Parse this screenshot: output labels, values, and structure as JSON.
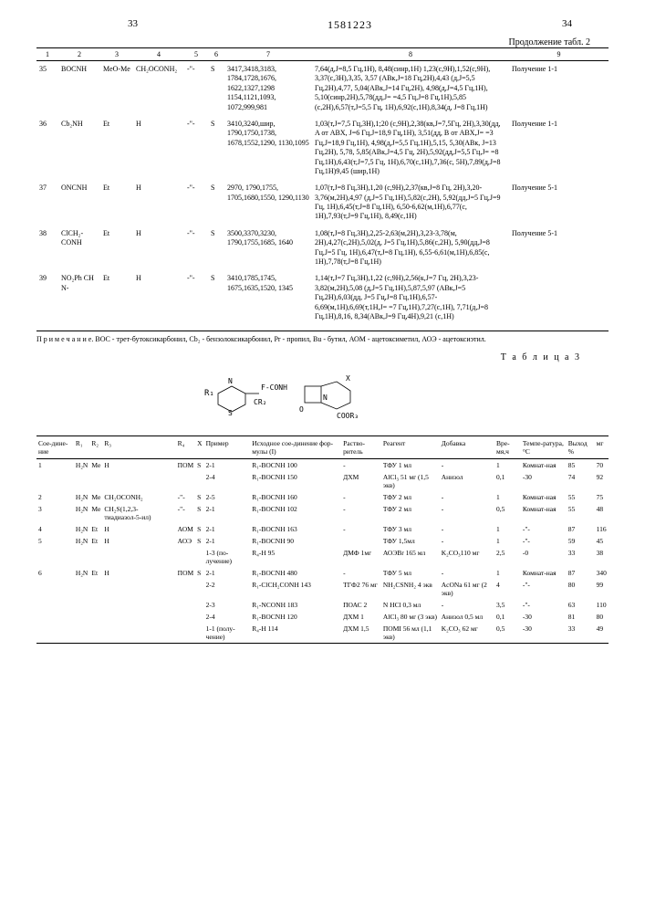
{
  "header": {
    "page_left": "33",
    "doc_number": "1581223",
    "page_right": "34",
    "continuation": "Продолжение табл. 2"
  },
  "table2": {
    "cols": [
      "1",
      "2",
      "3",
      "4",
      "5",
      "6",
      "7",
      "8",
      "9"
    ],
    "rows": [
      {
        "n": "35",
        "c2": "BOCNH",
        "c3": "MeO-Me",
        "c4": "CH₂OCONH₂",
        "c5": "-\"-",
        "c6": "S",
        "c7": "3417,3418,3183, 1784,1728,1676, 1622,1327,1298 1154,1121,1093, 1072,999,981",
        "c8": "7,64(д,J=8,5 Гц,1H), 8,48(синр,1H) 1,23(с,9H),1,52(с,9H), 3,37(с,3H),3,35, 3,57 (ABк,J=18 Гц,2H),4,43 (д,J=5,5 Гц,2H),4,77, 5,04(ABк,J=14 Гц,2H), 4,98(д,J=4,5 Гц,1H), 5,10(синр,2H),5,78(дд,J= =4,5 Гц,J=8 Гц,1H),5,85 (с,2H),6,57(т,J=5,5 Гц, 1H),6,92(с,1H),8,34(д, J=8 Гц,1H)",
        "c9": "Получение 1-1"
      },
      {
        "n": "36",
        "c2": "Cb₂NH",
        "c3": "Et",
        "c4": "H",
        "c5": "-\"-",
        "c6": "S",
        "c7": "3410,3240,шир, 1790,1750,1738, 1678,1552,1290, 1130,1095",
        "c8": "1,03(т,J=7,5 Гц,3H),1;20 (с,9H),2,38(кв,J=7,5Гц, 2H),3,30(дд, A от ABX, J=6 Гц,J=18,9 Гц,1H), 3,51(дд, B от ABX,J= =3 Гц,J=18,9 Гц,1H), 4,98(д,J=5,5 Гц,1H),5,15, 5,30(ABк, J=13 Гц,2H), 5,78, 5,85(ABк,J=4,5 Гц, 2H),5,92(дд,J=5,5 Гц,J= =8 Гц,1H),6,43(т,J=7,5 Гц, 1H),6,70(с,1H),7,36(с, 5H),7,89(д,J=8 Гц,1H)9,45 (шир,1H)",
        "c9": "Получение 1-1"
      },
      {
        "n": "37",
        "c2": "ONCNH",
        "c3": "Et",
        "c4": "H",
        "c5": "-\"-",
        "c6": "S",
        "c7": "2970, 1790,1755, 1705,1680,1550, 1290,1130",
        "c8": "1,07(т,J=8 Гц,3H),1,20 (с,9H),2,37(кв,J=8 Гц, 2H),3,20-3,76(м,2H),4,97 (д,J=5 Гц,1H),5,82(с,2H), 5,92(дд,J=5 Гц,J=9 Гц, 1H),6,45(т,J=8 Гц,1H), 6,50-6,62(м,1H),6,77(с, 1H),7,93(т,J=9 Гц,1H), 8,49(с,1H)",
        "c9": "Получение 5-1"
      },
      {
        "n": "38",
        "c2": "ClCH₂-CONH",
        "c3": "Et",
        "c4": "H",
        "c5": "-\"-",
        "c6": "S",
        "c7": "3500,3370,3230, 1790,1755,1685, 1640",
        "c8": "1,08(т,J=8 Гц,3H),2,25-2,63(м,2H),3,23-3,78(м, 2H),4,27(с,2H),5,02(д, J=5 Гц,1H),5,86(с,2H), 5,90(дд,J=8 Гц,J=5 Гц, 1H),6,47(т,J=8 Гц,1H), 6,55-6,61(м,1H),6,85(с, 1H),7,78(т,J=8 Гц,1H)",
        "c9": "Получение 5-1"
      },
      {
        "n": "39",
        "c2": "NO₂Ph CH N-",
        "c3": "Et",
        "c4": "H",
        "c5": "-\"-",
        "c6": "S",
        "c7": "3410,1785,1745, 1675,1635,1520, 1345",
        "c8": "1,14(т,J=7 Гц,3H),1,22 (с,9H),2,56(к,J=7 Гц, 2H),3,23-3,82(м,2H),5,08 (д,J=5 Гц,1H),5,87,5,97 (ABк,J=5 Гц,2H),6,03(дд, J=5 Гц,J=8 Гц,1H),6,57-6,69(м,1H),6,69(т,1H,J= =7 Гц,1H),7,27(с,1H), 7,71(д,J=8 Гц,1H),8,16, 8,34(ABк,J=9 Гц,4H),9,21 (с,1H)",
        "c9": ""
      }
    ],
    "note": "П р и м е ч а н и е. BOC - трет-бутоксикарбонил, Cb₂ - бензолоксикарбонил, Pr - пропил, Bu - бутил, АОМ - ацетоксиметил, АОЭ - ацетоксиэтил."
  },
  "table3": {
    "label": "Т а б л и ц а 3",
    "structure_text": "N═╗  F-CONH  ╔═╗\nR₁-╝ S ║     ║ ║\n      CR₂   O  N\n             COOR₃",
    "headers": [
      "Сое-дине-ние",
      "R₁",
      "R₂",
      "R₃",
      "R₄",
      "X",
      "Пример",
      "Исходное сое-динение фор-мулы (I)",
      "Раство-ритель",
      "Реагент",
      "Добавка",
      "Вре-мя,ч",
      "Темпе-ратура,°C",
      "Выход %",
      "мг"
    ],
    "rows": [
      {
        "c": [
          "1",
          "H₂N",
          "Me",
          "H",
          "ПОМ",
          "S",
          "2-1",
          "R₁-BOCNH 100",
          "-",
          "ТФУ 1 мл",
          "-",
          "1",
          "Комнат-ная",
          "85",
          "70"
        ]
      },
      {
        "c": [
          "",
          "",
          "",
          "",
          "",
          "",
          "2-4",
          "R₁-BOCNH 150",
          "ДХМ",
          "AlCl₃ 51 мг (1,5 экв)",
          "Анизол",
          "0,1",
          "-30",
          "74",
          "92"
        ]
      },
      {
        "c": [
          "2",
          "H₂N",
          "Me",
          "CH₂OCONH₂",
          "-\"-",
          "S",
          "2-5",
          "R₁-BOCNH 160",
          "-",
          "ТФУ 2 мл",
          "-",
          "1",
          "Комнат-ная",
          "55",
          "75"
        ]
      },
      {
        "c": [
          "3",
          "H₂N",
          "Me",
          "CH₂S(1,2,3-тиадиазол-5-ил)",
          "-\"-",
          "S",
          "2-1",
          "R₁-BOCNH 102",
          "-",
          "ТФУ 2 мл",
          "-",
          "0,5",
          "Комнат-ная",
          "55",
          "48"
        ]
      },
      {
        "c": [
          "4",
          "H₂N",
          "Et",
          "H",
          "АОМ",
          "S",
          "2-1",
          "R₁-BOCNH 163",
          "-",
          "ТФУ 3 мл",
          "-",
          "1",
          "-\"-",
          "87",
          "116"
        ]
      },
      {
        "c": [
          "5",
          "H₂N",
          "Et",
          "H",
          "АОЭ",
          "S",
          "2-1",
          "R₁-BOCNH 90",
          "",
          "ТФУ 1,5мл",
          "-",
          "1",
          "-\"-",
          "59",
          "45"
        ]
      },
      {
        "c": [
          "",
          "",
          "",
          "",
          "",
          "",
          "1-3 (по-лучение)",
          "R₄-H        95",
          "ДМФ 1мг",
          "АОЭBr 165 мл",
          "K₂CO₃110 мг",
          "2,5",
          "-0",
          "33",
          "38"
        ]
      },
      {
        "c": [
          "6",
          "H₂N",
          "Et",
          "H",
          "ПОМ",
          "S",
          "2-1",
          "R₁-BOCNH 480",
          "-",
          "ТФУ 5 мл",
          "-",
          "1",
          "Комнат-ная",
          "87",
          "340"
        ]
      },
      {
        "c": [
          "",
          "",
          "",
          "",
          "",
          "",
          "2-2",
          "R₁-ClCH₂CONH 143",
          "ТГФ2 76 мг",
          "NH₂CSNH₂ 4 экв",
          "AcONa 61 мг (2 экв)",
          "4",
          "-\"-",
          "80",
          "99"
        ]
      },
      {
        "c": [
          "",
          "",
          "",
          "",
          "",
          "",
          "2-3",
          "R₁-NCONH 183",
          "ПОАС 2",
          "N HCl 0,3 мл",
          "-",
          "3,5",
          "-\"-",
          "63",
          "110"
        ]
      },
      {
        "c": [
          "",
          "",
          "",
          "",
          "",
          "",
          "2-4",
          "R₁-BOCNH 120",
          "ДХМ 1",
          "AlCl₃ 80 мг (3 экв)",
          "Анизол 0,5 мл",
          "0,1",
          "-30",
          "81",
          "80"
        ]
      },
      {
        "c": [
          "",
          "",
          "",
          "",
          "",
          "",
          "1-1 (полу-чение)",
          "R₄-H 114",
          "ДХМ 1,5",
          "ПОМI 56 мл (1,1 экв)",
          "K₂CO₃ 62 мг",
          "0,5",
          "-30",
          "33",
          "49"
        ]
      }
    ]
  }
}
